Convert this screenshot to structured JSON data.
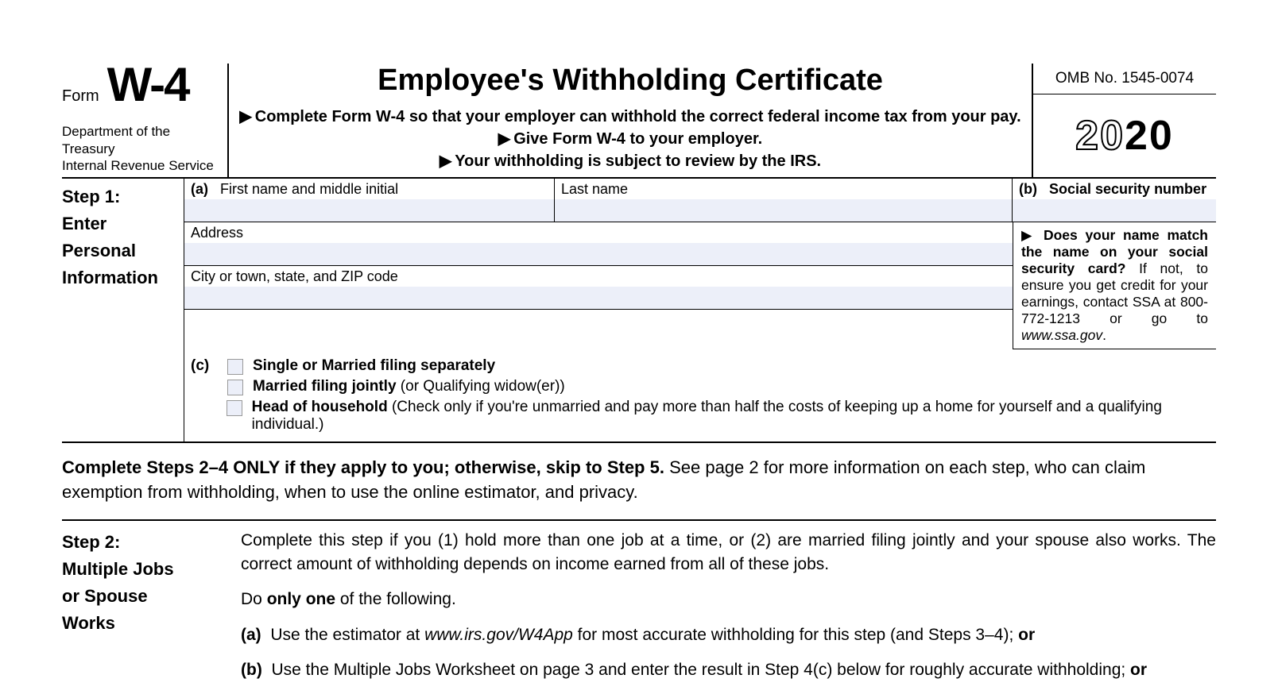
{
  "header": {
    "form_word": "Form",
    "form_code": "W-4",
    "dept_line1": "Department of the Treasury",
    "dept_line2": "Internal Revenue Service",
    "main_title": "Employee's Withholding Certificate",
    "instr1": "Complete Form W-4 so that your employer can withhold the correct federal income tax from your pay.",
    "instr2": "Give Form W-4 to your employer.",
    "instr3": "Your withholding is subject to review by the IRS.",
    "omb": "OMB No. 1545-0074",
    "year_outline": "20",
    "year_solid": "20"
  },
  "step1": {
    "title_line1": "Step 1:",
    "title_line2": "Enter",
    "title_line3": "Personal",
    "title_line4": "Information",
    "a_marker": "(a)",
    "first_name_label": "First name and middle initial",
    "last_name_label": "Last name",
    "b_marker": "(b)",
    "ssn_label": "Social security number",
    "address_label": "Address",
    "city_label": "City or town, state, and ZIP code",
    "ssa_bold": "Does your name match the name on your social security card?",
    "ssa_rest1": " If not, to ensure you get credit for your earnings, contact SSA at 800-772-1213 or go to ",
    "ssa_italic": "www.ssa.gov",
    "ssa_rest2": ".",
    "c_marker": "(c)",
    "c_opt1_bold": "Single or Married filing separately",
    "c_opt2_bold": "Married filing jointly",
    "c_opt2_rest": " (or Qualifying widow(er))",
    "c_opt3_bold": "Head of household",
    "c_opt3_rest": " (Check only if you're unmarried and pay more than half the costs of keeping up a home for yourself and a qualifying individual.)"
  },
  "inter_note": {
    "bold": "Complete Steps 2–4 ONLY if they apply to you; otherwise, skip to Step 5.",
    "rest": " See page 2 for more information on each step, who can claim exemption from withholding, when to use the online estimator, and privacy."
  },
  "step2": {
    "title_line1": "Step 2:",
    "title_line2": "Multiple Jobs",
    "title_line3": "or Spouse",
    "title_line4": "Works",
    "para1": "Complete this step if you (1) hold more than one job at a time, or (2) are married filing jointly and your spouse also works. The correct amount of withholding depends on income earned from all of these jobs.",
    "para2_pre": "Do ",
    "para2_bold": "only one",
    "para2_post": " of the following.",
    "opt_a_label": "(a)",
    "opt_a_pre": "Use the estimator at ",
    "opt_a_italic": "www.irs.gov/W4App",
    "opt_a_post": " for most accurate withholding for this step (and Steps 3–4); ",
    "opt_a_or": "or",
    "opt_b_label": "(b)",
    "opt_b_text": "Use the Multiple Jobs Worksheet on page 3 and enter the result in Step 4(c) below for roughly accurate withholding; ",
    "opt_b_or": "or"
  }
}
